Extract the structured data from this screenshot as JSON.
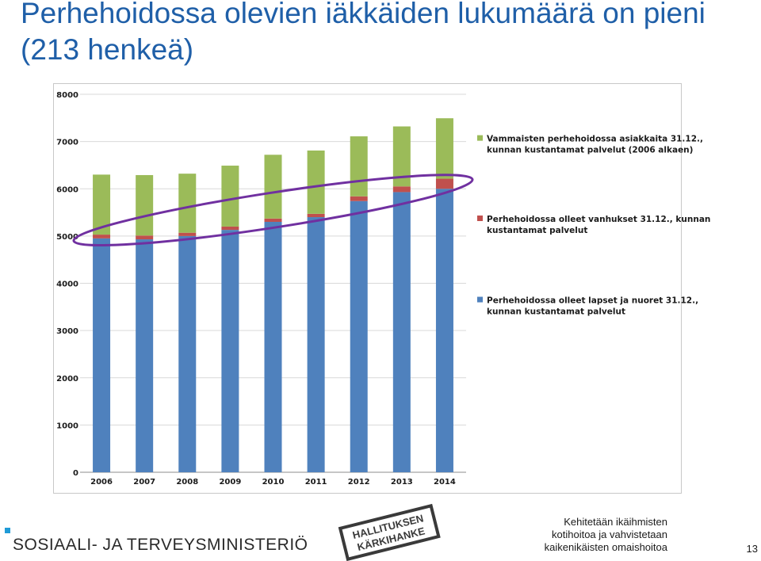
{
  "slide": {
    "title": "Perhehoidossa olevien iäkkäiden lukumäärä on pieni (213 henkeä)",
    "ministry": "SOSIAALI- JA TERVEYSMINISTERIÖ",
    "stamp_line1": "HALLITUKSEN",
    "stamp_line2": "KÄRKIHANKE",
    "footer_line1": "Kehitetään ikäihmisten",
    "footer_line2": "kotihoitoa ja vahvistetaan",
    "footer_line3": "kaikenikäisten omaishoitoa",
    "page_number": "13"
  },
  "colors": {
    "title": "#1f5fa8",
    "children": "#4f81bd",
    "elderly": "#c0504d",
    "disabled": "#9bbb59",
    "ellipse": "#7030a0"
  },
  "chart_data": {
    "type": "bar",
    "stacked": true,
    "categories": [
      "2006",
      "2007",
      "2008",
      "2009",
      "2010",
      "2011",
      "2012",
      "2013",
      "2014"
    ],
    "series": [
      {
        "name": "Perhehoidossa olleet lapset ja nuoret 31.12., kunnan kustantamat palvelut",
        "values": [
          4950,
          4930,
          5000,
          5130,
          5300,
          5400,
          5740,
          5930,
          6000
        ]
      },
      {
        "name": "Perhehoidossa olleet vanhukset 31.12., kunnan kustantamat palvelut",
        "values": [
          80,
          80,
          70,
          70,
          70,
          70,
          100,
          120,
          213
        ]
      },
      {
        "name": "Vammaisten perhehoidossa asiakkaita 31.12., kunnan kustantamat palvelut (2006 alkaen)",
        "values": [
          1270,
          1280,
          1250,
          1290,
          1350,
          1340,
          1270,
          1270,
          1280
        ]
      }
    ],
    "yticks": [
      "0",
      "1000",
      "2000",
      "3000",
      "4000",
      "5000",
      "6000",
      "7000",
      "8000"
    ],
    "ylim": [
      0,
      8000
    ],
    "grid": true,
    "legend_position": "right",
    "legend": [
      {
        "line1": "Vammaisten perhehoidossa asiakkaita 31.12.,",
        "line2": "kunnan kustantamat palvelut (2006 alkaen)"
      },
      {
        "line1": "Perhehoidossa olleet vanhukset 31.12., kunnan",
        "line2": "kustantamat palvelut"
      },
      {
        "line1": "Perhehoidossa olleet lapset ja nuoret 31.12.,",
        "line2": "kunnan kustantamat palvelut"
      }
    ],
    "annotation": "ellipse highlighting elderly segment"
  }
}
